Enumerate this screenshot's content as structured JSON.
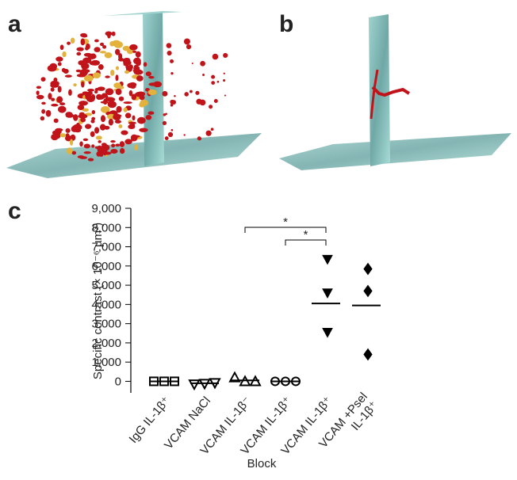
{
  "panel_labels": [
    "a",
    "b",
    "c"
  ],
  "chart_data": {
    "type": "dot",
    "ylabel": "Specific contrast (× 10⁻⁶ µm³)",
    "xlabel": "Block",
    "categories": [
      "IgG IL-1β⁺",
      "VCAM NaCl",
      "VCAM IL-1β⁻",
      "VCAM IL-1β⁺",
      "VCAM IL-1β⁺",
      "VCAM +Psel\nIL-1β⁺"
    ],
    "markers": [
      "square",
      "triangle-down",
      "triangle-up",
      "circle",
      "triangle-down-filled",
      "diamond-filled"
    ],
    "points": [
      [
        0,
        0,
        0
      ],
      [
        -150,
        -120,
        -80
      ],
      [
        200,
        0,
        0
      ],
      [
        0,
        0,
        0
      ],
      [
        6350,
        4600,
        2550
      ],
      [
        5850,
        4700,
        1400
      ]
    ],
    "means": [
      0,
      -100,
      50,
      0,
      4050,
      3950
    ],
    "comparisons": [
      {
        "label": "*",
        "between": [
          2,
          4
        ]
      },
      {
        "label": "*",
        "between": [
          3,
          4
        ]
      }
    ],
    "ylim": [
      -600,
      9000
    ],
    "yticks": [
      0,
      {
        "value": 1000,
        "label": "1,000"
      },
      {
        "value": 2000,
        "label": "2,000"
      },
      {
        "value": 3000,
        "label": "3,000"
      },
      {
        "value": 4000,
        "label": "4,000"
      },
      {
        "value": 5000,
        "label": "5,000"
      },
      {
        "value": 6000,
        "label": "6,000"
      },
      {
        "value": 7000,
        "label": "7,000"
      },
      {
        "value": 8000,
        "label": "8,000"
      },
      {
        "value": 9000,
        "label": "9,000"
      }
    ],
    "color": "#000000"
  }
}
